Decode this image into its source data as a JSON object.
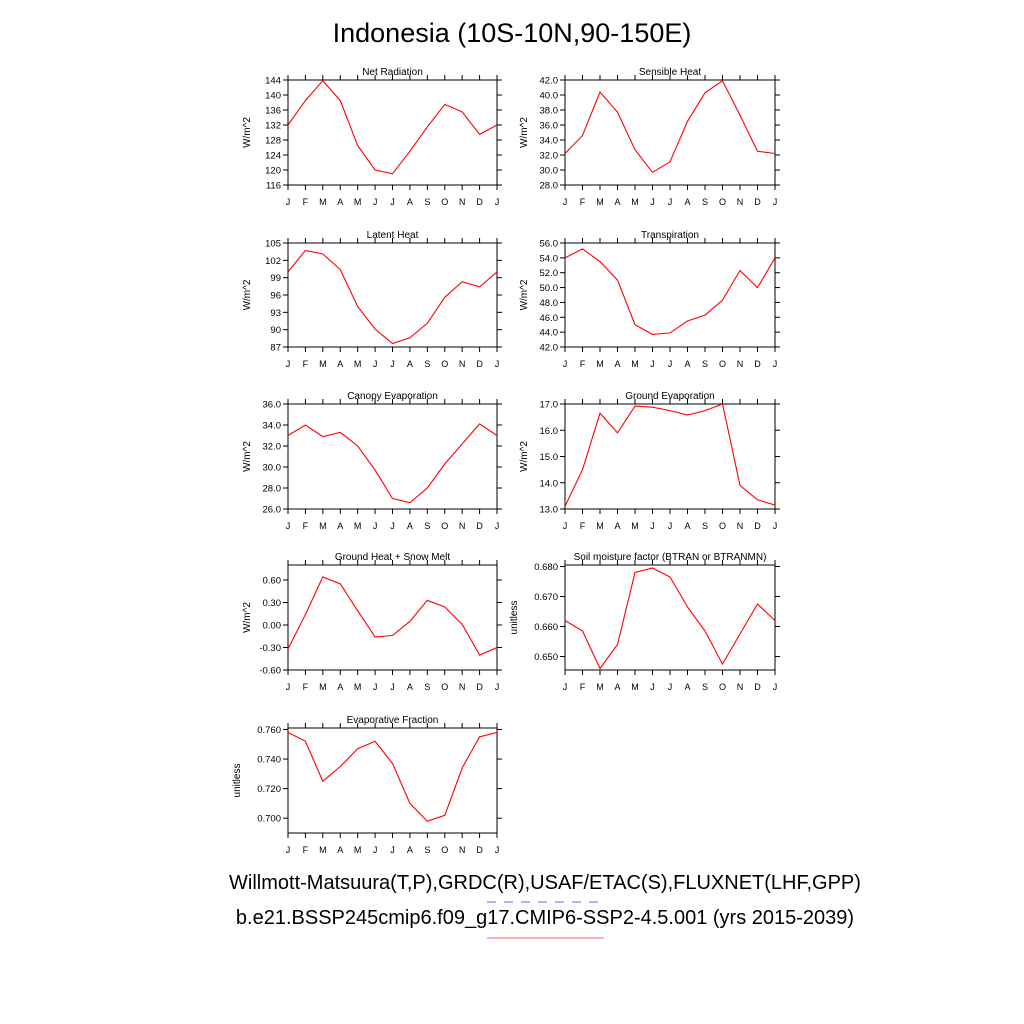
{
  "title": "Indonesia (10S-10N,90-150E)",
  "captions": {
    "line1": "Willmott-Matsuura(T,P),GRDC(R),USAF/ETAC(S),FLUXNET(LHF,GPP)",
    "line2": "b.e21.BSSP245cmip6.f09_g17.CMIP6-SSP2-4.5.001 (yrs 2015-2039)"
  },
  "legend_colors": {
    "line1_dash": "#6666ff",
    "line2_solid": "#ff6666"
  },
  "series_color": "#ff0000",
  "chart_data": [
    {
      "type": "line",
      "title": "Net Radiation",
      "ylabel": "W/m^2",
      "x": [
        "J",
        "F",
        "M",
        "A",
        "M",
        "J",
        "J",
        "A",
        "S",
        "O",
        "N",
        "D",
        "J"
      ],
      "ylim": [
        116,
        144
      ],
      "yticks": [
        "116",
        "120",
        "124",
        "128",
        "132",
        "136",
        "140",
        "144"
      ],
      "yticks_num": [
        116,
        120,
        124,
        128,
        132,
        136,
        140,
        144
      ],
      "values": [
        132.0,
        138.5,
        143.8,
        138.5,
        126.5,
        120.0,
        119.0,
        125.0,
        131.5,
        137.5,
        135.5,
        129.5,
        132.0
      ]
    },
    {
      "type": "line",
      "title": "Sensible Heat",
      "ylabel": "W/m^2",
      "x": [
        "J",
        "F",
        "M",
        "A",
        "M",
        "J",
        "J",
        "A",
        "S",
        "O",
        "N",
        "D",
        "J"
      ],
      "ylim": [
        28,
        42
      ],
      "yticks": [
        "28.0",
        "30.0",
        "32.0",
        "34.0",
        "36.0",
        "38.0",
        "40.0",
        "42.0"
      ],
      "yticks_num": [
        28,
        30,
        32,
        34,
        36,
        38,
        40,
        42
      ],
      "values": [
        32.2,
        34.6,
        40.4,
        37.7,
        32.7,
        29.7,
        31.1,
        36.5,
        40.3,
        41.9,
        37.3,
        32.5,
        32.2
      ]
    },
    {
      "type": "line",
      "title": "Latent Heat",
      "ylabel": "W/m^2",
      "x": [
        "J",
        "F",
        "M",
        "A",
        "M",
        "J",
        "J",
        "A",
        "S",
        "O",
        "N",
        "D",
        "J"
      ],
      "ylim": [
        87,
        105
      ],
      "yticks": [
        "87",
        "90",
        "93",
        "96",
        "99",
        "102",
        "105"
      ],
      "yticks_num": [
        87,
        90,
        93,
        96,
        99,
        102,
        105
      ],
      "values": [
        100.0,
        103.7,
        103.1,
        100.4,
        94.0,
        90.1,
        87.6,
        88.6,
        91.1,
        95.6,
        98.3,
        97.4,
        100.0
      ]
    },
    {
      "type": "line",
      "title": "Transpiration",
      "ylabel": "W/m^2",
      "x": [
        "J",
        "F",
        "M",
        "A",
        "M",
        "J",
        "J",
        "A",
        "S",
        "O",
        "N",
        "D",
        "J"
      ],
      "ylim": [
        42,
        56
      ],
      "yticks": [
        "42.0",
        "44.0",
        "46.0",
        "48.0",
        "50.0",
        "52.0",
        "54.0",
        "56.0"
      ],
      "yticks_num": [
        42,
        44,
        46,
        48,
        50,
        52,
        54,
        56
      ],
      "values": [
        54.0,
        55.2,
        53.5,
        51.0,
        45.0,
        43.7,
        43.9,
        45.5,
        46.3,
        48.3,
        52.3,
        50.0,
        54.0
      ]
    },
    {
      "type": "line",
      "title": "Canopy Evaporation",
      "ylabel": "W/m^2",
      "x": [
        "J",
        "F",
        "M",
        "A",
        "M",
        "J",
        "J",
        "A",
        "S",
        "O",
        "N",
        "D",
        "J"
      ],
      "ylim": [
        26,
        36
      ],
      "yticks": [
        "26.0",
        "28.0",
        "30.0",
        "32.0",
        "34.0",
        "36.0"
      ],
      "yticks_num": [
        26,
        28,
        30,
        32,
        34,
        36
      ],
      "values": [
        33.0,
        34.0,
        32.9,
        33.3,
        32.0,
        29.7,
        27.0,
        26.6,
        28.0,
        30.3,
        32.2,
        34.1,
        33.0
      ]
    },
    {
      "type": "line",
      "title": "Ground Evaporation",
      "ylabel": "W/m^2",
      "x": [
        "J",
        "F",
        "M",
        "A",
        "M",
        "J",
        "J",
        "A",
        "S",
        "O",
        "N",
        "D",
        "J"
      ],
      "ylim": [
        13,
        17
      ],
      "yticks": [
        "13.0",
        "14.0",
        "15.0",
        "16.0",
        "17.0"
      ],
      "yticks_num": [
        13,
        14,
        15,
        16,
        17
      ],
      "values": [
        13.1,
        14.5,
        16.65,
        15.9,
        16.92,
        16.88,
        16.75,
        16.58,
        16.75,
        17.0,
        13.9,
        13.35,
        13.15
      ]
    },
    {
      "type": "line",
      "title": "Ground Heat + Snow Melt",
      "ylabel": "W/m^2",
      "x": [
        "J",
        "F",
        "M",
        "A",
        "M",
        "J",
        "J",
        "A",
        "S",
        "O",
        "N",
        "D",
        "J"
      ],
      "ylim": [
        -0.6,
        0.8
      ],
      "yticks": [
        "-0.60",
        "-0.30",
        "0.00",
        "0.30",
        "0.60"
      ],
      "yticks_num": [
        -0.6,
        -0.3,
        0.0,
        0.3,
        0.6
      ],
      "values": [
        -0.32,
        0.14,
        0.64,
        0.55,
        0.19,
        -0.16,
        -0.14,
        0.05,
        0.33,
        0.24,
        0.01,
        -0.4,
        -0.3
      ]
    },
    {
      "type": "line",
      "title": "Soil moisture factor (BTRAN or BTRANMN)",
      "ylabel": "unitless",
      "x": [
        "J",
        "F",
        "M",
        "A",
        "M",
        "J",
        "J",
        "A",
        "S",
        "O",
        "N",
        "D",
        "J"
      ],
      "ylim": [
        0.6455,
        0.6805
      ],
      "yticks": [
        "0.650",
        "0.660",
        "0.670",
        "0.680"
      ],
      "yticks_num": [
        0.65,
        0.66,
        0.67,
        0.68
      ],
      "values": [
        0.662,
        0.6585,
        0.646,
        0.654,
        0.678,
        0.6795,
        0.6765,
        0.6665,
        0.6585,
        0.6475,
        0.6575,
        0.6675,
        0.662
      ]
    },
    {
      "type": "line",
      "title": "Evaporative Fraction",
      "ylabel": "unitless",
      "x": [
        "J",
        "F",
        "M",
        "A",
        "M",
        "J",
        "J",
        "A",
        "S",
        "O",
        "N",
        "D",
        "J"
      ],
      "ylim": [
        0.69,
        0.761
      ],
      "yticks": [
        "0.700",
        "0.720",
        "0.740",
        "0.760"
      ],
      "yticks_num": [
        0.7,
        0.72,
        0.74,
        0.76
      ],
      "values": [
        0.758,
        0.752,
        0.725,
        0.735,
        0.747,
        0.752,
        0.737,
        0.71,
        0.698,
        0.702,
        0.734,
        0.755,
        0.758
      ]
    }
  ]
}
